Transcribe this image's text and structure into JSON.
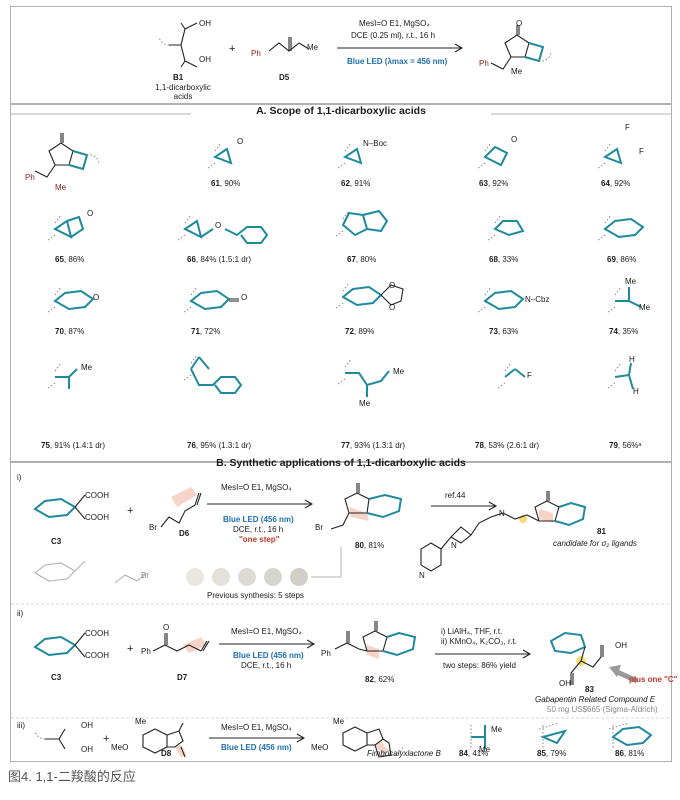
{
  "header": {
    "b1_label": "B1",
    "b1_sub": "1,1-dicarboxylic acids",
    "plus": "+",
    "d5_label": "D5",
    "cond1": "MesI=O E1, MgSO₄",
    "cond2": "DCE (0.25 ml), r.t., 16 h",
    "cond3": "Blue LED (λmax = 456 nm)",
    "ph": "Ph",
    "me": "Me"
  },
  "sectionA": {
    "title": "A. Scope of 1,1-dicarboxylic acids",
    "items": [
      {
        "id": "61",
        "text": ", 90%"
      },
      {
        "id": "62",
        "text": ", 91%"
      },
      {
        "id": "63",
        "text": ", 92%"
      },
      {
        "id": "64",
        "text": ", 92%"
      },
      {
        "id": "65",
        "text": ", 86%"
      },
      {
        "id": "66",
        "text": ", 84% (1.5:1 dr)"
      },
      {
        "id": "67",
        "text": ", 80%"
      },
      {
        "id": "68",
        "text": ", 33%"
      },
      {
        "id": "69",
        "text": ", 86%"
      },
      {
        "id": "70",
        "text": ", 87%"
      },
      {
        "id": "71",
        "text": ", 72%"
      },
      {
        "id": "72",
        "text": ", 89%"
      },
      {
        "id": "73",
        "text": ", 63%"
      },
      {
        "id": "74",
        "text": ", 35%"
      },
      {
        "id": "75",
        "text": ", 91% (1.4:1 dr)"
      },
      {
        "id": "76",
        "text": ", 95% (1.3:1 dr)"
      },
      {
        "id": "77",
        "text": ", 93% (1.3:1 dr)"
      },
      {
        "id": "78",
        "text": ", 53% (2.6:1 dr)"
      },
      {
        "id": "79",
        "text": ", 56%ᵃ"
      }
    ],
    "groups": {
      "nboc": "N–Boc",
      "ncbz": "N–Cbz",
      "f": "F",
      "o": "O",
      "me": "Me",
      "h": "H"
    }
  },
  "sectionB": {
    "title": "B. Synthetic applications of 1,1-dicarboxylic acids",
    "i": {
      "tag": "i)",
      "c3": "C3",
      "d6": "D6",
      "br": "Br",
      "cooh": "COOH",
      "cond1": "MesI=O E1, MgSO₄",
      "cond2": "Blue LED (456 nm)",
      "cond3": "DCE, r.t., 16 h",
      "cond4": "\"one step\"",
      "p80": "80",
      "p80y": ", 81%",
      "ref": "ref.44",
      "p81": "81",
      "p81d": "candidate for σ₂ ligands",
      "prev": "Previous synthesis: 5 steps",
      "n": "N"
    },
    "ii": {
      "tag": "ii)",
      "c3": "C3",
      "d7": "D7",
      "ph": "Ph",
      "cooh": "COOH",
      "cond1": "MesI=O E1, MgSO₄",
      "cond2": "Blue LED (456 nm)",
      "cond3": "DCE, r.t., 16 h",
      "p82": "82",
      "p82y": ", 62%",
      "step1": "i) LiAlH₄, THF, r.t.",
      "step2": "ii) KMnO₄, K₂CO₃, r.t.",
      "step3": "two steps: 86% yield",
      "p83": "83",
      "p83d": "Gabapentin Related Compound E",
      "p83p": "50 mg US$665 (Sigma-Aldrich)",
      "plus": "plus one \"C\"",
      "oh": "OH"
    },
    "iii": {
      "tag": "iii)",
      "d8": "D8",
      "me": "Me",
      "meo": "MeO",
      "oh": "OH",
      "cond1": "MesI=O E1, MgSO₄",
      "cond2": "Blue LED (456 nm)",
      "cond3": "DCE, r.t., 16 h",
      "prod": "Fimbricalyxlactone B",
      "p84": "84",
      "p84y": ", 41%",
      "p85": "85",
      "p85y": ", 79%",
      "p86": "86",
      "p86y": ", 81%"
    }
  },
  "caption": "图4. 1,1-二羧酸的反应",
  "colors": {
    "accent_blue": "#1f6fb2",
    "teal_bond": "#1f8a9e",
    "highlight": "#f4c6b6",
    "red": "#c0392b"
  }
}
